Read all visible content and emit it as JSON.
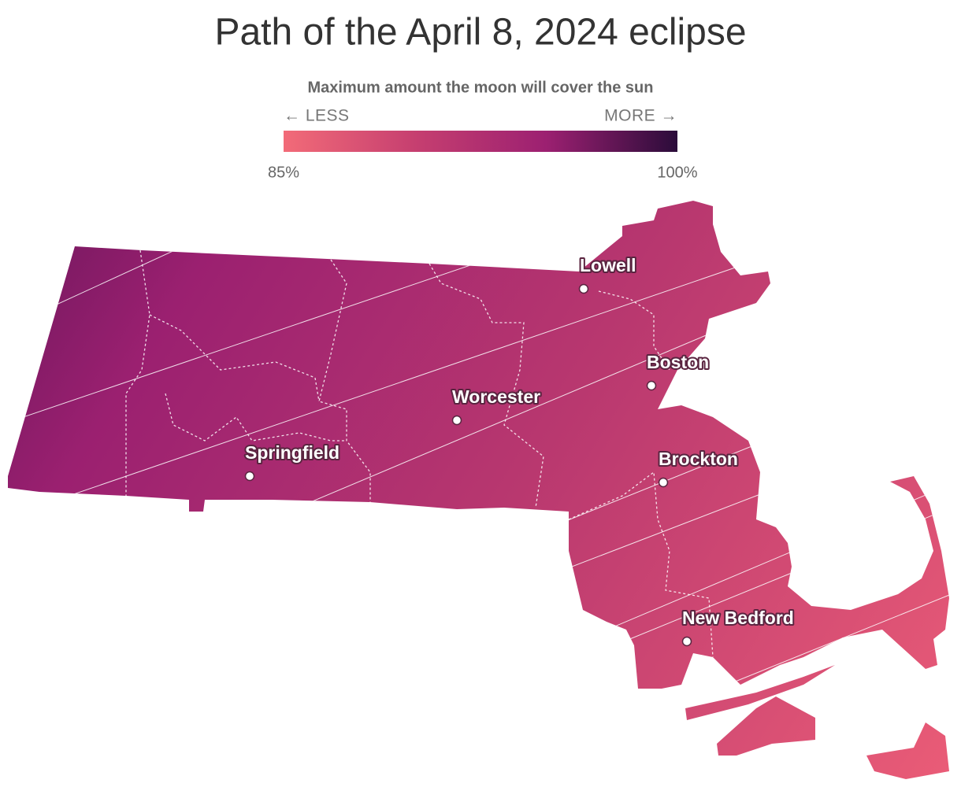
{
  "title": "Path of the April 8, 2024 eclipse",
  "legend": {
    "title": "Maximum amount the moon will cover the sun",
    "less": "← LESS",
    "more": "MORE →",
    "min": {
      "value": 85,
      "label": "85%"
    },
    "max": {
      "value": 100,
      "label": "100%"
    },
    "colors": [
      "#f26b78",
      "#c63f70",
      "#9c2071",
      "#2b0c3a"
    ]
  },
  "cities": [
    {
      "name": "Lowell"
    },
    {
      "name": "Boston"
    },
    {
      "name": "Worcester"
    },
    {
      "name": "Springfield"
    },
    {
      "name": "Brockton"
    },
    {
      "name": "New Bedford"
    }
  ]
}
